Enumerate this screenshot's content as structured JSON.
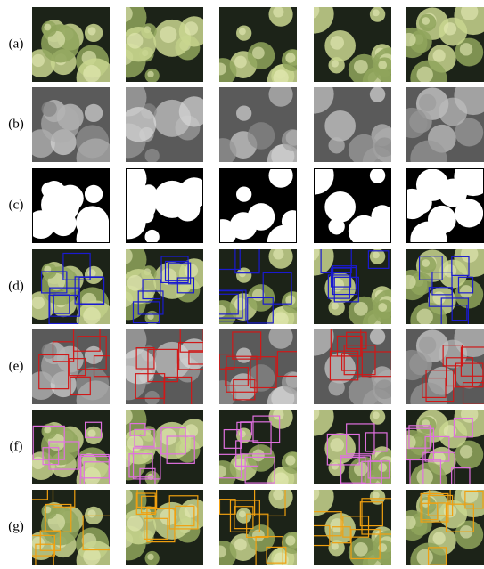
{
  "row_labels": [
    "(a)",
    "(b)",
    "(c)",
    "(d)",
    "(e)",
    "(f)",
    "(g)"
  ]
}
